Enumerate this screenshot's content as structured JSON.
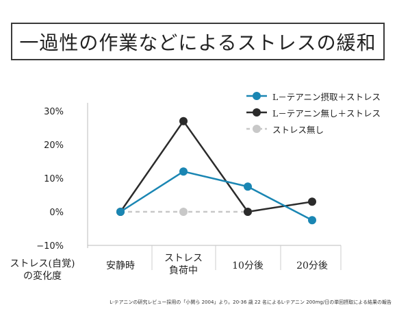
{
  "title": "一過性の作業などによるストレスの緩和",
  "footnote": "L-テアニンの研究レビュー採用の「小関ら 2004」より。20-36 歳 22 名によるL-テアニン 200mg/日の単回摂取による結果の報告",
  "chart_data": {
    "type": "line",
    "ylabel": "ストレス(自覚)\nの変化度",
    "categories": [
      "安静時",
      "ストレス\n負荷中",
      "10分後",
      "20分後"
    ],
    "yticks": [
      "30%",
      "20%",
      "10%",
      "0%",
      "−10%"
    ],
    "ylim": [
      -10,
      30
    ],
    "grid": false,
    "legend_position": "top-right",
    "series": [
      {
        "name": "L－テアニン摂取＋ストレス",
        "values": [
          0,
          12,
          7.5,
          -2.5
        ],
        "color": "#1a86b3",
        "style": "solid"
      },
      {
        "name": "L－テアニン無し＋ストレス",
        "values": [
          0,
          27,
          0,
          3
        ],
        "color": "#2b2b2b",
        "style": "solid"
      },
      {
        "name": "ストレス無し",
        "values": [
          0,
          0,
          0,
          3
        ],
        "color": "#c8c8c8",
        "style": "dashed"
      }
    ]
  }
}
